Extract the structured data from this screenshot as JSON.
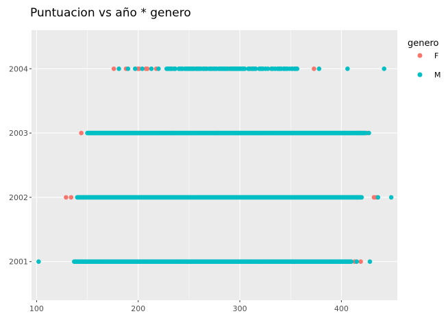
{
  "chart_data": {
    "type": "scatter",
    "title": "Puntuacion vs año * genero",
    "xlabel": "",
    "ylabel": "",
    "xlim": [
      95,
      455
    ],
    "x_ticks": [
      100,
      200,
      300,
      400
    ],
    "y_categories": [
      "2001",
      "2002",
      "2003",
      "2004"
    ],
    "grid": true,
    "legend": {
      "title": "genero",
      "placement": "right",
      "entries": [
        {
          "label": "F",
          "color": "#F8766D"
        },
        {
          "label": "M",
          "color": "#00BFC4"
        }
      ]
    },
    "series": [
      {
        "name": "F",
        "color": "#F8766D",
        "bands": [
          {
            "y": "2001",
            "from": 150,
            "to": 420,
            "density": 0.08,
            "outliers": [
              419,
              413
            ]
          },
          {
            "y": "2002",
            "from": 132,
            "to": 425,
            "density": 0.08,
            "outliers": [
              129,
              134,
              432,
              434
            ]
          },
          {
            "y": "2003",
            "from": 155,
            "to": 420,
            "density": 0.08,
            "outliers": [
              144,
              425,
              420,
              416
            ]
          },
          {
            "y": "2004",
            "from": 192,
            "to": 357,
            "density": 0.35,
            "outliers": [
              176,
              188,
              201,
              209,
              255,
              258,
              331,
              354,
              373
            ]
          }
        ]
      },
      {
        "name": "M",
        "color": "#00BFC4",
        "bands": [
          {
            "y": "2001",
            "from": 137,
            "to": 410,
            "density": 1.0,
            "outliers": [
              102,
              415,
              428
            ]
          },
          {
            "y": "2002",
            "from": 140,
            "to": 420,
            "density": 1.0,
            "outliers": [
              415,
              436,
              449
            ]
          },
          {
            "y": "2003",
            "from": 150,
            "to": 424,
            "density": 1.0,
            "outliers": [
              427
            ]
          },
          {
            "y": "2004",
            "from": 228,
            "to": 357,
            "density": 0.75,
            "outliers": [
              181,
              190,
              197,
              204,
              213,
              220,
              378,
              406,
              442
            ]
          }
        ]
      }
    ]
  }
}
